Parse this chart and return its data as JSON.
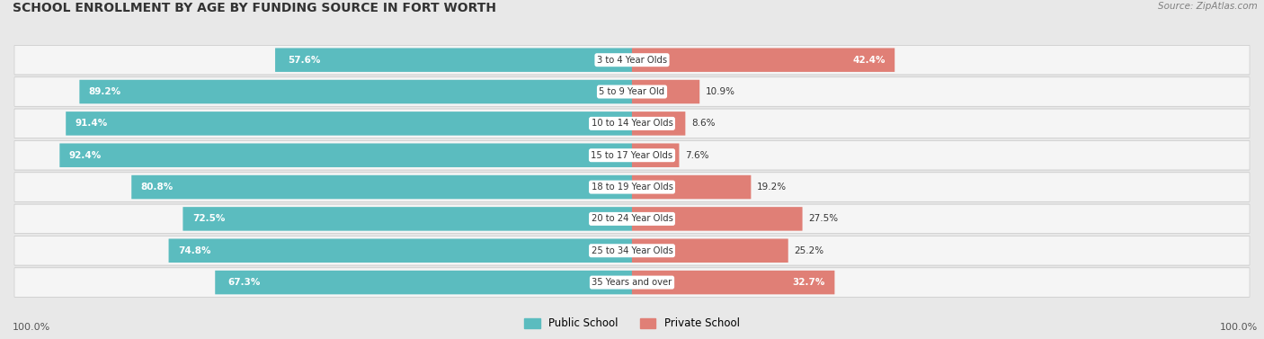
{
  "title": "SCHOOL ENROLLMENT BY AGE BY FUNDING SOURCE IN FORT WORTH",
  "source": "Source: ZipAtlas.com",
  "categories": [
    "3 to 4 Year Olds",
    "5 to 9 Year Old",
    "10 to 14 Year Olds",
    "15 to 17 Year Olds",
    "18 to 19 Year Olds",
    "20 to 24 Year Olds",
    "25 to 34 Year Olds",
    "35 Years and over"
  ],
  "public_values": [
    57.6,
    89.2,
    91.4,
    92.4,
    80.8,
    72.5,
    74.8,
    67.3
  ],
  "private_values": [
    42.4,
    10.9,
    8.6,
    7.6,
    19.2,
    27.5,
    25.2,
    32.7
  ],
  "public_labels": [
    "57.6%",
    "89.2%",
    "91.4%",
    "92.4%",
    "80.8%",
    "72.5%",
    "74.8%",
    "67.3%"
  ],
  "private_labels": [
    "42.4%",
    "10.9%",
    "8.6%",
    "7.6%",
    "19.2%",
    "27.5%",
    "25.2%",
    "32.7%"
  ],
  "public_color": "#5bbcbf",
  "private_color": "#e07f76",
  "background_color": "#e8e8e8",
  "row_bg_color": "#f5f5f5",
  "axis_label_left": "100.0%",
  "axis_label_right": "100.0%",
  "legend_public": "Public School",
  "legend_private": "Private School",
  "title_fontsize": 10,
  "figsize": [
    14.06,
    3.77
  ]
}
